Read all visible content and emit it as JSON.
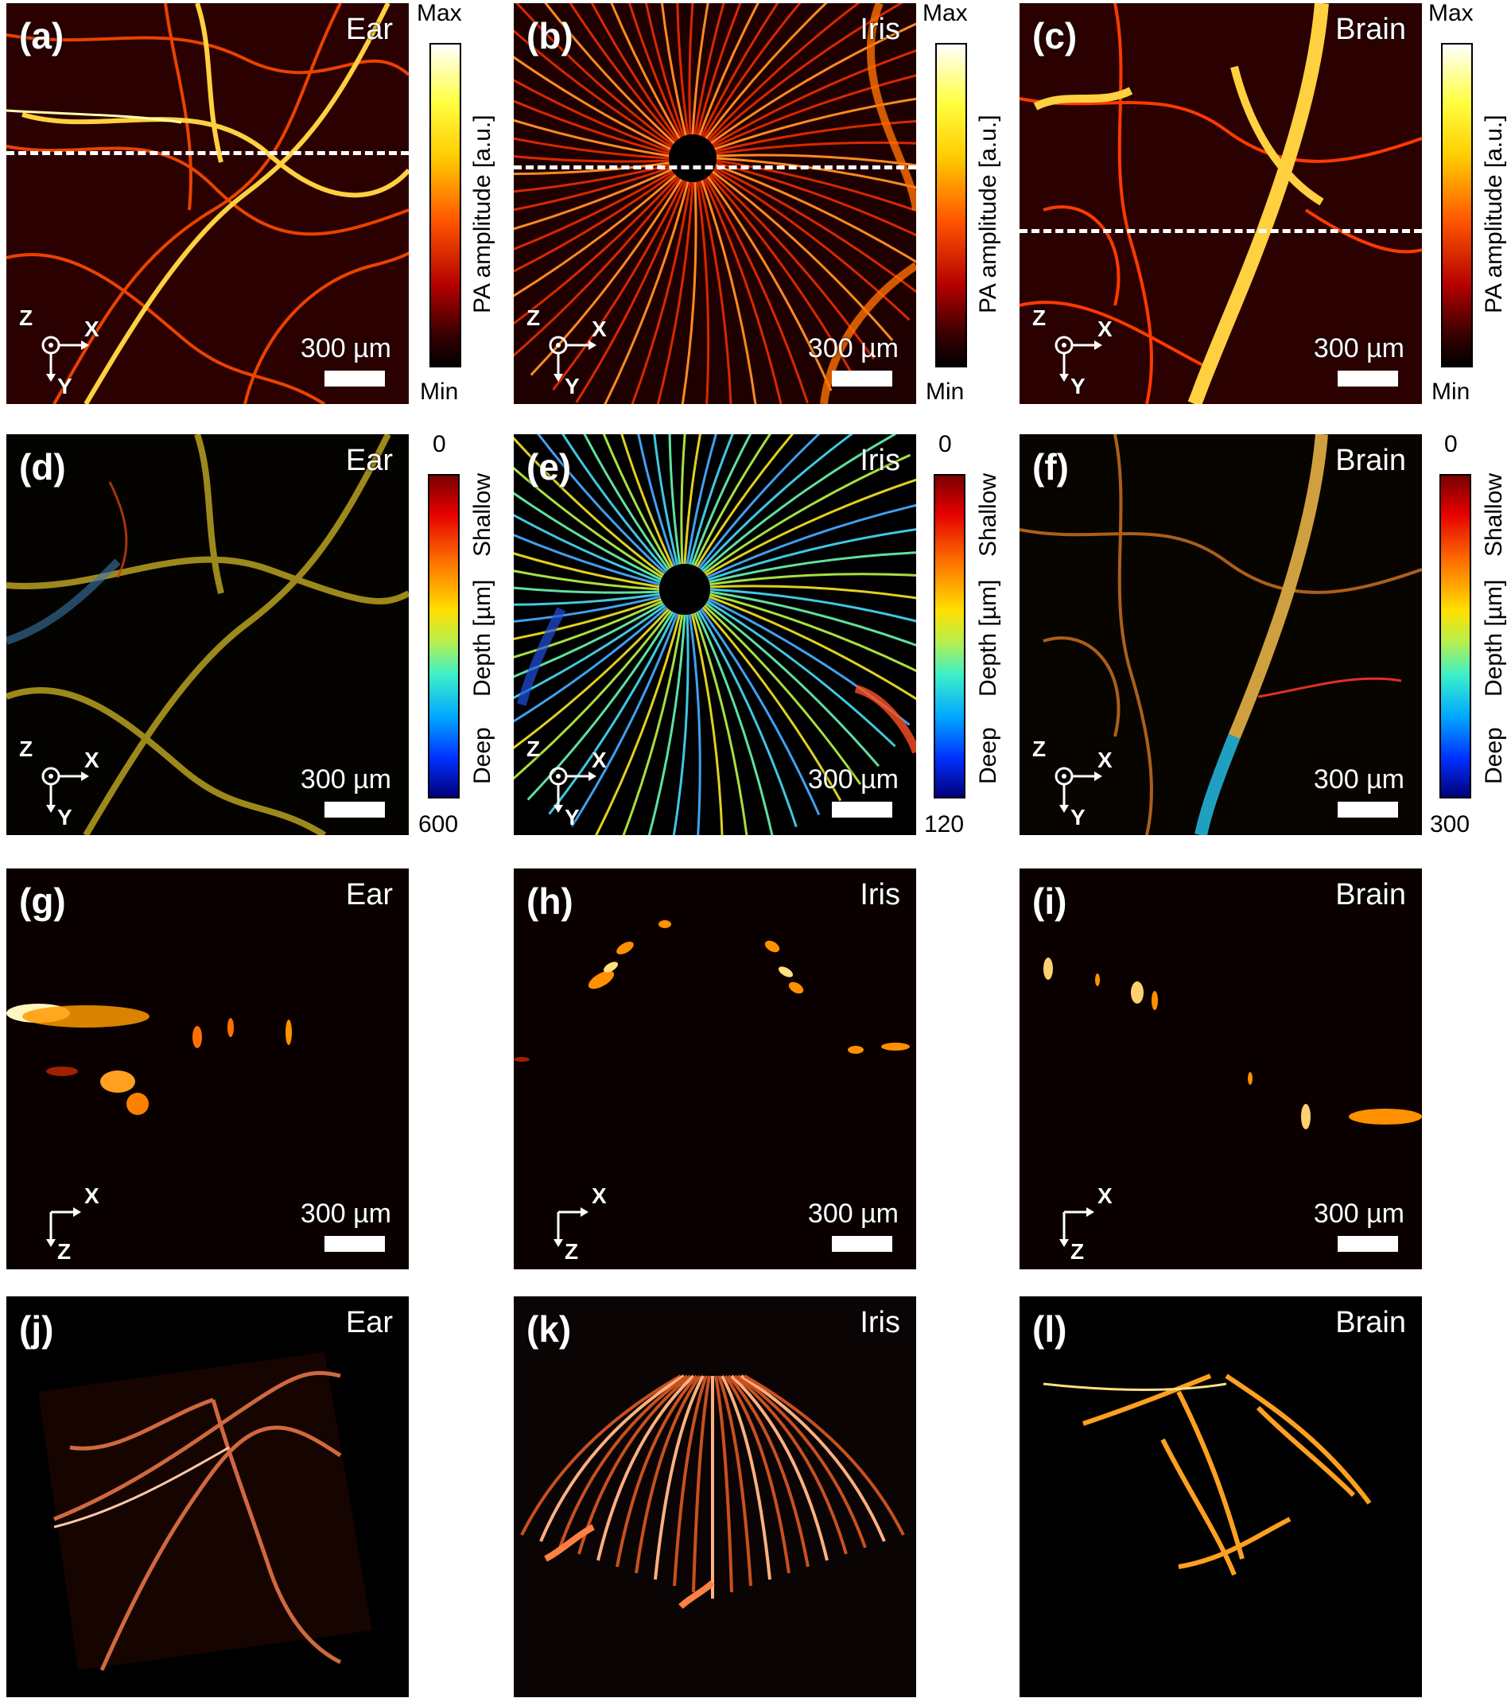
{
  "panels": {
    "a": {
      "label": "(a)",
      "tissue": "Ear",
      "scale": "300 µm",
      "ax_h": "X",
      "ax_v": "Y",
      "ax_o": "Z"
    },
    "b": {
      "label": "(b)",
      "tissue": "Iris",
      "scale": "300 µm",
      "ax_h": "X",
      "ax_v": "Y",
      "ax_o": "Z"
    },
    "c": {
      "label": "(c)",
      "tissue": "Brain",
      "scale": "300 µm",
      "ax_h": "X",
      "ax_v": "Y",
      "ax_o": "Z"
    },
    "d": {
      "label": "(d)",
      "tissue": "Ear",
      "scale": "300 µm",
      "ax_h": "X",
      "ax_v": "Y",
      "ax_o": "Z"
    },
    "e": {
      "label": "(e)",
      "tissue": "Iris",
      "scale": "300 µm",
      "ax_h": "X",
      "ax_v": "Y",
      "ax_o": "Z"
    },
    "f": {
      "label": "(f)",
      "tissue": "Brain",
      "scale": "300 µm",
      "ax_h": "X",
      "ax_v": "Y",
      "ax_o": "Z"
    },
    "g": {
      "label": "(g)",
      "tissue": "Ear",
      "scale": "300 µm",
      "ax_h": "X",
      "ax_v": "Z"
    },
    "h": {
      "label": "(h)",
      "tissue": "Iris",
      "scale": "300 µm",
      "ax_h": "X",
      "ax_v": "Z"
    },
    "i": {
      "label": "(i)",
      "tissue": "Brain",
      "scale": "300 µm",
      "ax_h": "X",
      "ax_v": "Z"
    },
    "j": {
      "label": "(j)",
      "tissue": "Ear"
    },
    "k": {
      "label": "(k)",
      "tissue": "Iris"
    },
    "l": {
      "label": "(l)",
      "tissue": "Brain"
    }
  },
  "colorbars": {
    "pa": {
      "title": "PA amplitude [a.u.]",
      "max": "Max",
      "min": "Min"
    },
    "depth_ear": {
      "title": "Depth [µm]",
      "top": "0",
      "bottom": "600",
      "shallow": "Shallow",
      "deep": "Deep"
    },
    "depth_iris": {
      "title": "Depth [µm]",
      "top": "0",
      "bottom": "120",
      "shallow": "Shallow",
      "deep": "Deep"
    },
    "depth_brain": {
      "title": "Depth [µm]",
      "top": "0",
      "bottom": "300",
      "shallow": "Shallow",
      "deep": "Deep"
    }
  },
  "colors": {
    "background": "#000000",
    "vessel_hot": "#ff6a00",
    "vessel_bright": "#ffe680",
    "overlay": "#ffffff"
  }
}
